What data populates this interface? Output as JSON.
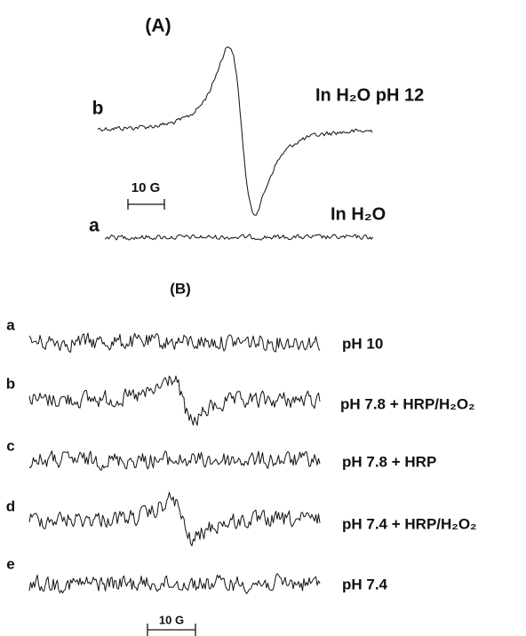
{
  "panel_a": {
    "title": "(A)",
    "traces": [
      {
        "label": "b",
        "description": "In H₂O pH 12"
      },
      {
        "label": "a",
        "description": "In H₂O"
      }
    ],
    "scale_bar": "10 G"
  },
  "panel_b": {
    "title": "(B)",
    "traces": [
      {
        "label": "a",
        "description": "pH 10"
      },
      {
        "label": "b",
        "description": "pH 7.8 + HRP/H₂O₂"
      },
      {
        "label": "c",
        "description": "pH 7.8 + HRP"
      },
      {
        "label": "d",
        "description": "pH 7.4 + HRP/H₂O₂"
      },
      {
        "label": "e",
        "description": "pH 7.4"
      }
    ],
    "scale_bar": "10 G"
  }
}
